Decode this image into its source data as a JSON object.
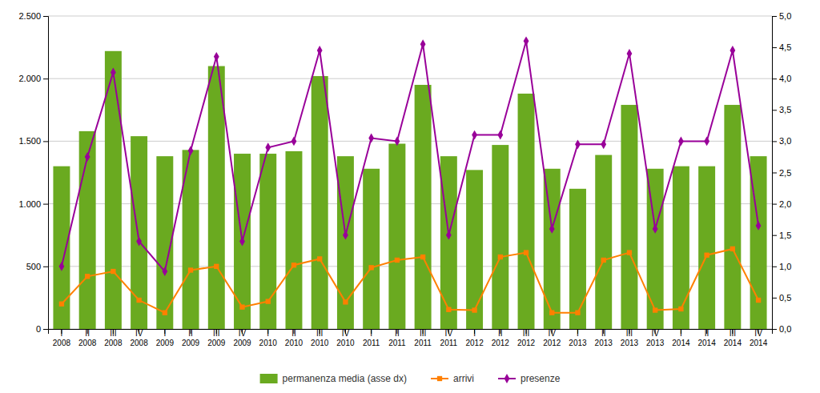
{
  "chart_data": {
    "type": "bar",
    "categories": [
      "I\n2008",
      "II\n2008",
      "III\n2008",
      "IV\n2008",
      "I\n2009",
      "II\n2009",
      "III\n2009",
      "IV\n2009",
      "I\n2010",
      "II\n2010",
      "III\n2010",
      "IV\n2010",
      "I\n2011",
      "II\n2011",
      "III\n2011",
      "IV\n2011",
      "I\n2012",
      "II\n2012",
      "III\n2012",
      "IV\n2012",
      "I\n2013",
      "II\n2013",
      "III\n2013",
      "IV\n2013",
      "I\n2014",
      "II\n2014",
      "III\n2014",
      "IV\n2014"
    ],
    "series": [
      {
        "name": "permanenza media (asse dx)",
        "type": "bar",
        "color": "#6aaa20",
        "values": [
          1300,
          1580,
          2220,
          1540,
          1380,
          1430,
          2100,
          1400,
          1400,
          1420,
          2020,
          1380,
          1280,
          1480,
          1950,
          1380,
          1270,
          1470,
          1880,
          1280,
          1120,
          1390,
          1790,
          1280,
          1300,
          1300,
          1790,
          1380
        ]
      },
      {
        "name": "arrivi",
        "type": "line",
        "color": "#ff8000",
        "marker": "square",
        "axis": "y2",
        "values": [
          0.4,
          0.84,
          0.92,
          0.46,
          0.26,
          0.94,
          1.0,
          0.35,
          0.44,
          1.02,
          1.12,
          0.43,
          0.98,
          1.1,
          1.15,
          0.31,
          0.3,
          1.15,
          1.22,
          0.26,
          0.26,
          1.1,
          1.22,
          0.3,
          0.32,
          1.18,
          1.28,
          0.46
        ]
      },
      {
        "name": "presenze",
        "type": "line",
        "color": "#990099",
        "marker": "diamond",
        "axis": "y2",
        "values": [
          1.0,
          2.75,
          4.1,
          1.4,
          0.92,
          2.85,
          4.35,
          1.4,
          2.9,
          3.0,
          4.45,
          1.5,
          3.05,
          3.0,
          4.55,
          1.5,
          3.1,
          3.1,
          4.6,
          1.6,
          2.95,
          2.95,
          4.4,
          1.6,
          3.0,
          3.0,
          4.45,
          1.65
        ]
      }
    ],
    "ylim": [
      0,
      2500
    ],
    "yticks": [
      0,
      500,
      {
        "value": 1000,
        "label": "1.000"
      },
      {
        "value": 1500,
        "label": "1.500"
      },
      {
        "value": 2000,
        "label": "2.000"
      },
      {
        "value": 2500,
        "label": "2.500"
      }
    ],
    "y2lim": [
      0.0,
      5.0
    ],
    "y2ticks": [
      {
        "value": 0.0,
        "label": "0,0"
      },
      {
        "value": 0.5,
        "label": "0,5"
      },
      {
        "value": 1.0,
        "label": "1,0"
      },
      {
        "value": 1.5,
        "label": "1,5"
      },
      {
        "value": 2.0,
        "label": "2,0"
      },
      {
        "value": 2.5,
        "label": "2,5"
      },
      {
        "value": 3.0,
        "label": "3,0"
      },
      {
        "value": 3.5,
        "label": "3,5"
      },
      {
        "value": 4.0,
        "label": "4,0"
      },
      {
        "value": 4.5,
        "label": "4,5"
      },
      {
        "value": 5.0,
        "label": "5,0"
      }
    ],
    "grid": true,
    "legend": "bottom"
  }
}
